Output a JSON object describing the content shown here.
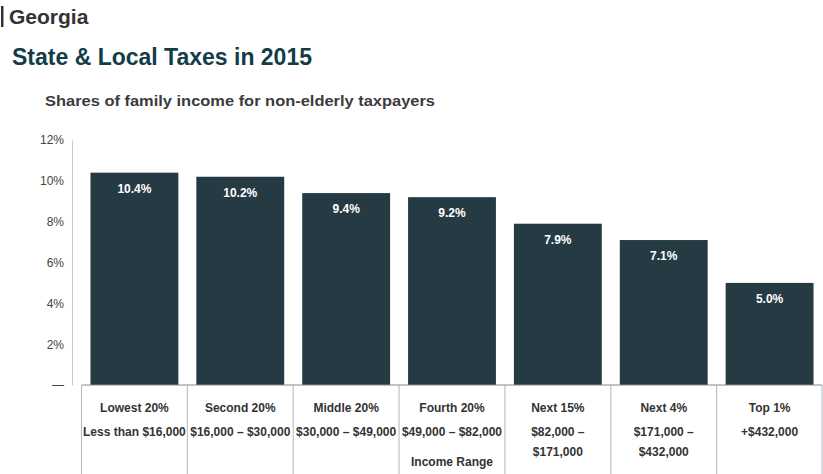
{
  "chart_data": {
    "type": "bar",
    "header": "Georgia",
    "title": "State & Local Taxes in 2015",
    "subtitle": "Shares of family income for non-elderly taxpayers",
    "x_label": "Income Range",
    "categories": [
      [
        "Lowest 20%",
        "Less than $16,000"
      ],
      [
        "Second 20%",
        "$16,000 – $30,000"
      ],
      [
        "Middle 20%",
        "$30,000 – $49,000"
      ],
      [
        "Fourth 20%",
        "$49,000 – $82,000"
      ],
      [
        "Next 15%",
        "$82,000 –",
        "$171,000"
      ],
      [
        "Next 4%",
        "$171,000 –",
        "$432,000"
      ],
      [
        "Top 1%",
        "+$432,000"
      ]
    ],
    "values": [
      10.4,
      10.2,
      9.4,
      9.2,
      7.9,
      7.1,
      5.0
    ],
    "value_labels": [
      "10.4%",
      "10.2%",
      "9.4%",
      "9.2%",
      "7.9%",
      "7.1%",
      "5.0%"
    ],
    "color": "#253a43",
    "ylim": [
      0,
      12
    ],
    "yticks": [
      {
        "value": 0,
        "label": "—"
      },
      {
        "value": 2,
        "label": "2%"
      },
      {
        "value": 4,
        "label": "4%"
      },
      {
        "value": 6,
        "label": "6%"
      },
      {
        "value": 8,
        "label": "8%"
      },
      {
        "value": 10,
        "label": "10%"
      },
      {
        "value": 12,
        "label": "12%"
      }
    ],
    "data_labels": true,
    "grid": false
  }
}
